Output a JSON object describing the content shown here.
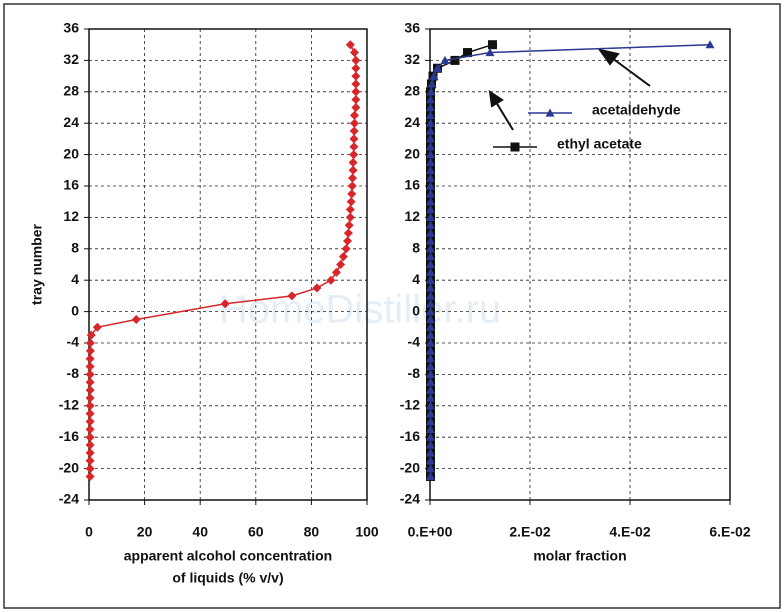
{
  "chart_data": [
    {
      "type": "line",
      "ylabel": "tray number",
      "xlabel": [
        "apparent alcohol concentration",
        "of liquids (% v/v)"
      ],
      "xlim": [
        0,
        100
      ],
      "xticks": [
        0,
        20,
        40,
        60,
        80,
        100
      ],
      "ylim": [
        -24,
        36
      ],
      "yticks": [
        -24,
        -20,
        -16,
        -12,
        -8,
        -4,
        0,
        4,
        8,
        12,
        16,
        20,
        24,
        28,
        32,
        36
      ],
      "grid": true,
      "series": [
        {
          "color": "#d9262b",
          "marker": "diamond",
          "x": [
            0.4,
            0.4,
            0.4,
            0.4,
            0.4,
            0.4,
            0.4,
            0.4,
            0.4,
            0.4,
            0.4,
            0.4,
            0.4,
            0.4,
            0.4,
            0.4,
            0.5,
            0.5,
            0.8,
            3,
            17,
            49,
            73,
            82,
            87,
            89,
            90.5,
            91.5,
            92.5,
            93,
            93.3,
            93.6,
            94,
            94,
            94.3,
            94.5,
            94.7,
            94.8,
            95,
            95,
            95.2,
            95.3,
            95.3,
            95.4,
            95.5,
            95.5,
            96,
            96,
            96,
            96,
            96,
            96,
            96,
            95.5,
            94
          ],
          "y": [
            -21,
            -20,
            -19,
            -18,
            -17,
            -16,
            -15,
            -14,
            -13,
            -12,
            -11,
            -10,
            -9,
            -8,
            -7,
            -6,
            -5,
            -4,
            -3,
            -2,
            -1,
            1,
            2,
            3,
            4,
            5,
            6,
            7,
            8,
            9,
            10,
            11,
            12,
            13,
            14,
            15,
            16,
            17,
            18,
            19,
            20,
            21,
            22,
            23,
            24,
            25,
            26,
            27,
            28,
            29,
            30,
            31,
            32,
            33,
            34
          ]
        }
      ]
    },
    {
      "type": "line",
      "xlabel": [
        "molar fraction"
      ],
      "xlim": [
        0,
        0.06
      ],
      "xticks": [
        {
          "value": 0,
          "label": "0.E+00"
        },
        {
          "value": 0.02,
          "label": "2.E-02"
        },
        {
          "value": 0.04,
          "label": "4.E-02"
        },
        {
          "value": 0.06,
          "label": "6.E-02"
        }
      ],
      "ylim": [
        -24,
        36
      ],
      "yticks": [
        -24,
        -20,
        -16,
        -12,
        -8,
        -4,
        0,
        4,
        8,
        12,
        16,
        20,
        24,
        28,
        32,
        36
      ],
      "grid": true,
      "series": [
        {
          "name": "ethyl acetate",
          "color": "#111111",
          "marker": "square",
          "x": [
            0.0001,
            0.0001,
            0.0001,
            0.0001,
            0.0001,
            0.0001,
            0.0001,
            0.0001,
            0.0001,
            0.0001,
            0.0001,
            0.0001,
            0.0001,
            0.0001,
            0.0001,
            0.0001,
            0.0001,
            0.0001,
            0.0001,
            0.0001,
            0.0001,
            0.0001,
            0.0001,
            0.0001,
            0.0001,
            0.0001,
            0.0001,
            0.0001,
            0.0001,
            0.0001,
            0.0001,
            0.0001,
            0.0001,
            0.0001,
            0.0001,
            0.0001,
            0.0001,
            0.0001,
            0.0001,
            0.0001,
            0.0001,
            0.0001,
            0.0001,
            0.0001,
            0.0001,
            0.0001,
            0.0001,
            0.0001,
            0.0001,
            0.0001,
            0.0003,
            0.0006,
            0.0015,
            0.005,
            0.0075,
            0.0125
          ],
          "y": [
            -21,
            -20,
            -19,
            -18,
            -17,
            -16,
            -15,
            -14,
            -13,
            -12,
            -11,
            -10,
            -9,
            -8,
            -7,
            -6,
            -5,
            -4,
            -3,
            -2,
            -1,
            0,
            1,
            2,
            3,
            4,
            5,
            6,
            7,
            8,
            9,
            10,
            11,
            12,
            13,
            14,
            15,
            16,
            17,
            18,
            19,
            20,
            21,
            22,
            23,
            24,
            25,
            26,
            27,
            28,
            29,
            30,
            31,
            32,
            33,
            34
          ]
        },
        {
          "name": "acetaldehyde",
          "color": "#2b3990",
          "marker": "triangle",
          "x": [
            0.0001,
            0.0001,
            0.0001,
            0.0001,
            0.0001,
            0.0001,
            0.0001,
            0.0001,
            0.0001,
            0.0001,
            0.0001,
            0.0001,
            0.0001,
            0.0001,
            0.0001,
            0.0001,
            0.0001,
            0.0001,
            0.0001,
            0.0001,
            0.0001,
            0.0001,
            0.0001,
            0.0001,
            0.0001,
            0.0001,
            0.0001,
            0.0001,
            0.0001,
            0.0001,
            0.0001,
            0.0001,
            0.0001,
            0.0001,
            0.0001,
            0.0001,
            0.0001,
            0.0001,
            0.0001,
            0.0001,
            0.0001,
            0.0001,
            0.0001,
            0.0001,
            0.0001,
            0.0001,
            0.0001,
            0.0001,
            0.0001,
            0.0002,
            0.0004,
            0.0008,
            0.0015,
            0.003,
            0.012,
            0.056
          ],
          "y": [
            -21,
            -20,
            -19,
            -18,
            -17,
            -16,
            -15,
            -14,
            -13,
            -12,
            -11,
            -10,
            -9,
            -8,
            -7,
            -6,
            -5,
            -4,
            -3,
            -2,
            -1,
            0,
            1,
            2,
            3,
            4,
            5,
            6,
            7,
            8,
            9,
            10,
            11,
            12,
            13,
            14,
            15,
            16,
            17,
            18,
            19,
            20,
            21,
            22,
            23,
            24,
            25,
            26,
            27,
            28,
            29,
            30,
            31,
            32,
            33,
            34
          ]
        }
      ]
    }
  ],
  "watermark": "HomeDistiller.ru"
}
